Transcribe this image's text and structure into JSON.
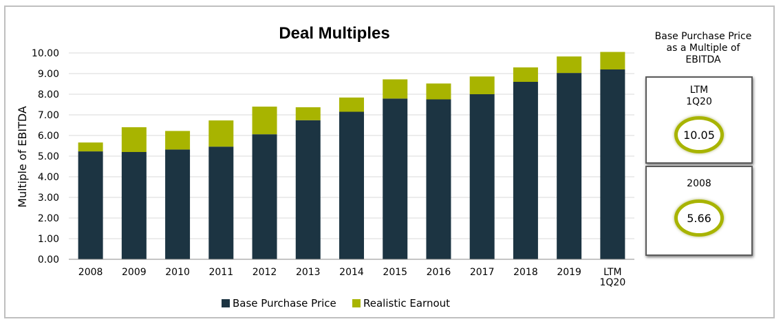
{
  "chart_data": {
    "type": "bar",
    "stacked": true,
    "title": "Deal Multiples",
    "ylabel": "Multiple of EBITDA",
    "xlabel": "",
    "ylim": [
      0,
      10
    ],
    "yticks": [
      "0.00",
      "1.00",
      "2.00",
      "3.00",
      "4.00",
      "5.00",
      "6.00",
      "7.00",
      "8.00",
      "9.00",
      "10.00"
    ],
    "categories": [
      "2008",
      "2009",
      "2010",
      "2011",
      "2012",
      "2013",
      "2014",
      "2015",
      "2016",
      "2017",
      "2018",
      "2019",
      "LTM\n1Q20"
    ],
    "series": [
      {
        "name": "Base Purchase Price",
        "color": "#1c3442",
        "values": [
          5.23,
          5.2,
          5.32,
          5.46,
          6.06,
          6.74,
          7.15,
          7.79,
          7.75,
          8.0,
          8.6,
          9.03,
          9.2
        ]
      },
      {
        "name": "Realistic Earnout",
        "color": "#a8b400",
        "values": [
          0.43,
          1.2,
          0.9,
          1.27,
          1.34,
          0.63,
          0.69,
          0.93,
          0.77,
          0.86,
          0.7,
          0.8,
          0.85
        ]
      }
    ],
    "grid": true,
    "legend_position": "bottom"
  },
  "side_panel": {
    "title": "Base Purchase Price\nas a Multiple of\nEBITDA",
    "boxes": [
      {
        "label": "LTM\n1Q20",
        "value": "10.05"
      },
      {
        "label": "2008",
        "value": "5.66"
      }
    ]
  }
}
